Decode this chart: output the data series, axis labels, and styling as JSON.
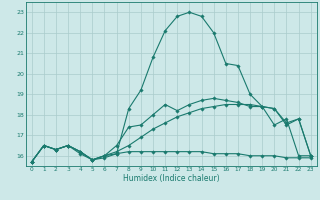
{
  "xlabel": "Humidex (Indice chaleur)",
  "x": [
    0,
    1,
    2,
    3,
    4,
    5,
    6,
    7,
    8,
    9,
    10,
    11,
    12,
    13,
    14,
    15,
    16,
    17,
    18,
    19,
    20,
    21,
    22,
    23
  ],
  "line1": [
    15.7,
    16.5,
    16.3,
    16.5,
    16.2,
    15.8,
    16.0,
    16.1,
    18.3,
    19.2,
    20.8,
    22.1,
    22.8,
    23.0,
    22.8,
    22.0,
    20.5,
    20.4,
    19.0,
    18.4,
    17.5,
    17.8,
    16.0,
    16.0
  ],
  "line2": [
    15.7,
    16.5,
    16.3,
    16.5,
    16.2,
    15.8,
    16.0,
    16.5,
    17.4,
    17.5,
    18.0,
    18.5,
    18.2,
    18.5,
    18.7,
    18.8,
    18.7,
    18.6,
    18.4,
    18.4,
    18.3,
    17.5,
    17.8,
    16.0
  ],
  "line3": [
    15.7,
    16.5,
    16.3,
    16.5,
    16.2,
    15.8,
    15.9,
    16.1,
    16.2,
    16.2,
    16.2,
    16.2,
    16.2,
    16.2,
    16.2,
    16.1,
    16.1,
    16.1,
    16.0,
    16.0,
    16.0,
    15.9,
    15.9,
    15.9
  ],
  "line4": [
    15.7,
    16.5,
    16.3,
    16.5,
    16.1,
    15.8,
    16.0,
    16.2,
    16.5,
    16.9,
    17.3,
    17.6,
    17.9,
    18.1,
    18.3,
    18.4,
    18.5,
    18.5,
    18.5,
    18.4,
    18.3,
    17.6,
    17.8,
    16.0
  ],
  "ylim": [
    15.5,
    23.5
  ],
  "yticks": [
    16,
    17,
    18,
    19,
    20,
    21,
    22,
    23
  ],
  "xticks": [
    0,
    1,
    2,
    3,
    4,
    5,
    6,
    7,
    8,
    9,
    10,
    11,
    12,
    13,
    14,
    15,
    16,
    17,
    18,
    19,
    20,
    21,
    22,
    23
  ],
  "line_color": "#1a7a6e",
  "bg_color": "#cde8e8",
  "grid_color": "#aacccc",
  "marker": "D",
  "marker_size": 1.8,
  "line_width": 0.8
}
